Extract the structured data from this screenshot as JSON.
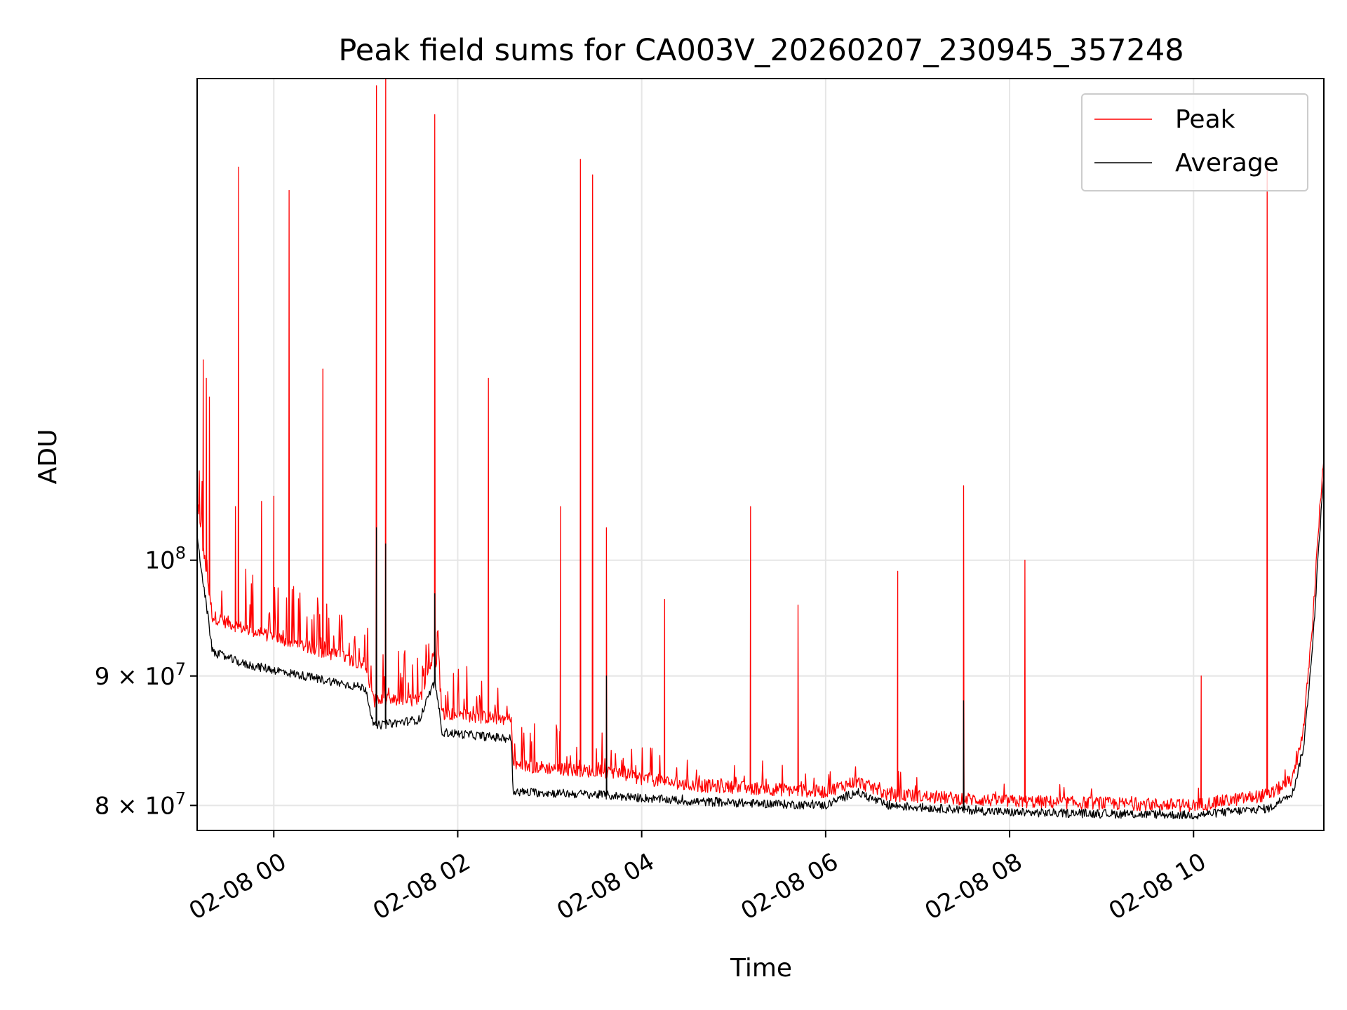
{
  "chart_data": {
    "type": "line",
    "title": "Peak field sums for CA003V_20260207_230945_357248",
    "xlabel": "Time",
    "ylabel": "ADU",
    "y_scale": "log",
    "xlim": [
      "2026-02-07 23:10",
      "2026-02-08 11:25"
    ],
    "ylim": [
      78200000,
      155000000
    ],
    "grid": true,
    "legend_position": "top-right",
    "x_ticks": [
      "02-08 00",
      "02-08 02",
      "02-08 04",
      "02-08 06",
      "02-08 08",
      "02-08 10"
    ],
    "y_ticks": [
      {
        "label": "8 × 10",
        "exp": "7"
      },
      {
        "label": "9 × 10",
        "exp": "7"
      },
      {
        "label": "10",
        "exp": "8"
      }
    ],
    "colors": {
      "peak": "#ff0000",
      "average": "#000000"
    },
    "series": [
      {
        "name": "Peak",
        "color": "#ff0000",
        "baseline": [
          [
            "2026-02-07 23:10",
            105000000
          ],
          [
            "2026-02-07 23:20",
            95000000
          ],
          [
            "2026-02-07 23:40",
            94000000
          ],
          [
            "2026-02-08 00:20",
            92500000
          ],
          [
            "2026-02-08 01:00",
            91000000
          ],
          [
            "2026-02-08 01:05",
            88000000
          ],
          [
            "2026-02-08 01:35",
            88000000
          ],
          [
            "2026-02-08 01:45",
            92000000
          ],
          [
            "2026-02-08 01:50",
            87000000
          ],
          [
            "2026-02-08 02:35",
            86500000
          ],
          [
            "2026-02-08 02:36",
            83000000
          ],
          [
            "2026-02-08 03:30",
            82500000
          ],
          [
            "2026-02-08 04:30",
            81500000
          ],
          [
            "2026-02-08 06:00",
            81000000
          ],
          [
            "2026-02-08 06:20",
            81800000
          ],
          [
            "2026-02-08 06:40",
            80800000
          ],
          [
            "2026-02-08 08:00",
            80300000
          ],
          [
            "2026-02-08 10:00",
            80000000
          ],
          [
            "2026-02-08 10:50",
            80800000
          ],
          [
            "2026-02-08 11:05",
            82000000
          ],
          [
            "2026-02-08 11:12",
            86000000
          ],
          [
            "2026-02-08 11:18",
            95000000
          ],
          [
            "2026-02-08 11:22",
            104000000
          ],
          [
            "2026-02-08 11:25",
            110000000
          ]
        ],
        "spikes": [
          [
            "2026-02-07 23:14",
            120000000
          ],
          [
            "2026-02-07 23:16",
            118000000
          ],
          [
            "2026-02-07 23:18",
            116000000
          ],
          [
            "2026-02-07 23:37",
            143000000
          ],
          [
            "2026-02-07 23:35",
            105000000
          ],
          [
            "2026-02-07 23:52",
            105500000
          ],
          [
            "2026-02-08 00:00",
            106000000
          ],
          [
            "2026-02-08 00:10",
            140000000
          ],
          [
            "2026-02-08 00:32",
            119000000
          ],
          [
            "2026-02-08 01:07",
            154000000
          ],
          [
            "2026-02-08 01:13",
            160000000
          ],
          [
            "2026-02-08 01:45",
            150000000
          ],
          [
            "2026-02-08 02:20",
            118000000
          ],
          [
            "2026-02-08 03:07",
            105000000
          ],
          [
            "2026-02-08 03:20",
            144000000
          ],
          [
            "2026-02-08 03:28",
            142000000
          ],
          [
            "2026-02-08 03:37",
            103000000
          ],
          [
            "2026-02-08 04:15",
            96500000
          ],
          [
            "2026-02-08 05:11",
            105000000
          ],
          [
            "2026-02-08 05:42",
            96000000
          ],
          [
            "2026-02-08 06:47",
            99000000
          ],
          [
            "2026-02-08 07:30",
            107000000
          ],
          [
            "2026-02-08 08:10",
            100000000
          ],
          [
            "2026-02-08 10:05",
            90000000
          ],
          [
            "2026-02-08 10:48",
            144000000
          ]
        ]
      },
      {
        "name": "Average",
        "color": "#000000",
        "baseline": [
          [
            "2026-02-07 23:10",
            102000000
          ],
          [
            "2026-02-07 23:20",
            92000000
          ],
          [
            "2026-02-07 23:40",
            91000000
          ],
          [
            "2026-02-08 00:20",
            90000000
          ],
          [
            "2026-02-08 01:00",
            89000000
          ],
          [
            "2026-02-08 01:05",
            86000000
          ],
          [
            "2026-02-08 01:35",
            86500000
          ],
          [
            "2026-02-08 01:45",
            89500000
          ],
          [
            "2026-02-08 01:50",
            85500000
          ],
          [
            "2026-02-08 02:35",
            85000000
          ],
          [
            "2026-02-08 02:36",
            81000000
          ],
          [
            "2026-02-08 03:30",
            80800000
          ],
          [
            "2026-02-08 04:30",
            80300000
          ],
          [
            "2026-02-08 06:00",
            80000000
          ],
          [
            "2026-02-08 06:20",
            81000000
          ],
          [
            "2026-02-08 06:40",
            80000000
          ],
          [
            "2026-02-08 08:00",
            79500000
          ],
          [
            "2026-02-08 10:00",
            79300000
          ],
          [
            "2026-02-08 10:50",
            79800000
          ],
          [
            "2026-02-08 11:05",
            81000000
          ],
          [
            "2026-02-08 11:12",
            84500000
          ],
          [
            "2026-02-08 11:18",
            93000000
          ],
          [
            "2026-02-08 11:22",
            102000000
          ],
          [
            "2026-02-08 11:25",
            108000000
          ]
        ],
        "spikes": [
          [
            "2026-02-08 01:07",
            103000000
          ],
          [
            "2026-02-08 01:13",
            101500000
          ],
          [
            "2026-02-08 01:45",
            97000000
          ],
          [
            "2026-02-08 07:30",
            88000000
          ],
          [
            "2026-02-08 03:37",
            90000000
          ]
        ]
      }
    ]
  }
}
